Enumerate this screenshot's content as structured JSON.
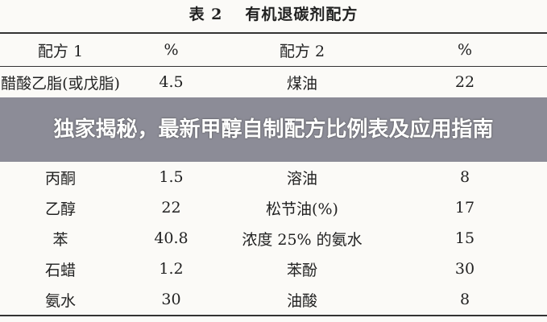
{
  "table": {
    "caption_label": "表 2",
    "caption_title": "有机退碳剂配方",
    "headers": [
      "配方 1",
      "%",
      "配方 2",
      "%"
    ],
    "rows": [
      [
        "醋酸乙脂(或戊脂)",
        "4.5",
        "煤油",
        "22"
      ],
      [
        "丙酮",
        "1.5",
        "溶油",
        "8"
      ],
      [
        "乙醇",
        "22",
        "松节油(%)",
        "17"
      ],
      [
        "苯",
        "40.8",
        "浓度 25% 的氨水",
        "15"
      ],
      [
        "石蜡",
        "1.2",
        "苯酚",
        "30"
      ],
      [
        "氨水",
        "30",
        "油酸",
        "8"
      ]
    ]
  },
  "banner": {
    "headline": "独家揭秘，最新甲醇自制配方比例表及应用指南"
  }
}
